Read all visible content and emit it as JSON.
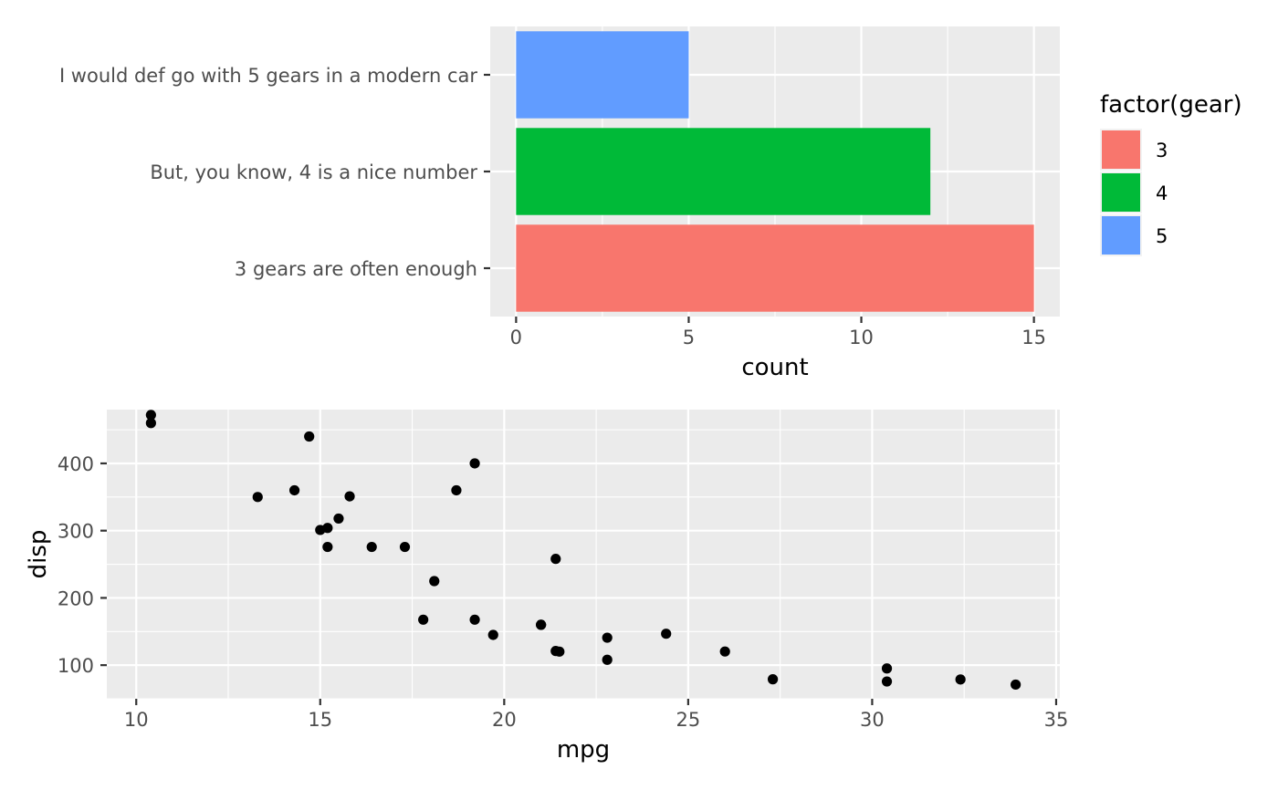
{
  "chart_data": [
    {
      "type": "bar",
      "orientation": "horizontal",
      "categories": [
        "3 gears are often enough",
        "But, you know, 4 is a nice number",
        "I would def go with 5 gears in a modern car"
      ],
      "values": [
        15,
        12,
        5
      ],
      "colors": [
        "#F8766D",
        "#00BA38",
        "#619CFF"
      ],
      "xlabel": "count",
      "ylabel": "",
      "xlim": [
        -0.75,
        15.75
      ],
      "xticks": [
        0,
        5,
        10,
        15
      ],
      "grid": true,
      "legend": {
        "title": "factor(gear)",
        "position": "right",
        "entries": [
          {
            "label": "3",
            "color": "#F8766D"
          },
          {
            "label": "4",
            "color": "#00BA38"
          },
          {
            "label": "5",
            "color": "#619CFF"
          }
        ]
      }
    },
    {
      "type": "scatter",
      "xlabel": "mpg",
      "ylabel": "disp",
      "xlim": [
        9.2,
        35.1
      ],
      "ylim": [
        50,
        480
      ],
      "xticks": [
        10,
        15,
        20,
        25,
        30,
        35
      ],
      "yticks": [
        100,
        200,
        300,
        400
      ],
      "grid": true,
      "points": [
        [
          21.0,
          160
        ],
        [
          21.0,
          160
        ],
        [
          22.8,
          108
        ],
        [
          21.4,
          258
        ],
        [
          18.7,
          360
        ],
        [
          18.1,
          225
        ],
        [
          14.3,
          360
        ],
        [
          24.4,
          146.7
        ],
        [
          22.8,
          140.8
        ],
        [
          19.2,
          167.6
        ],
        [
          17.8,
          167.6
        ],
        [
          16.4,
          275.8
        ],
        [
          17.3,
          275.8
        ],
        [
          15.2,
          275.8
        ],
        [
          10.4,
          472
        ],
        [
          10.4,
          460
        ],
        [
          14.7,
          440
        ],
        [
          32.4,
          78.7
        ],
        [
          30.4,
          75.7
        ],
        [
          33.9,
          71.1
        ],
        [
          21.5,
          120.1
        ],
        [
          15.5,
          318
        ],
        [
          15.2,
          304
        ],
        [
          13.3,
          350
        ],
        [
          19.2,
          400
        ],
        [
          27.3,
          79
        ],
        [
          26.0,
          120.3
        ],
        [
          30.4,
          95.1
        ],
        [
          15.8,
          351
        ],
        [
          19.7,
          145
        ],
        [
          15.0,
          301
        ],
        [
          21.4,
          121
        ]
      ]
    }
  ]
}
